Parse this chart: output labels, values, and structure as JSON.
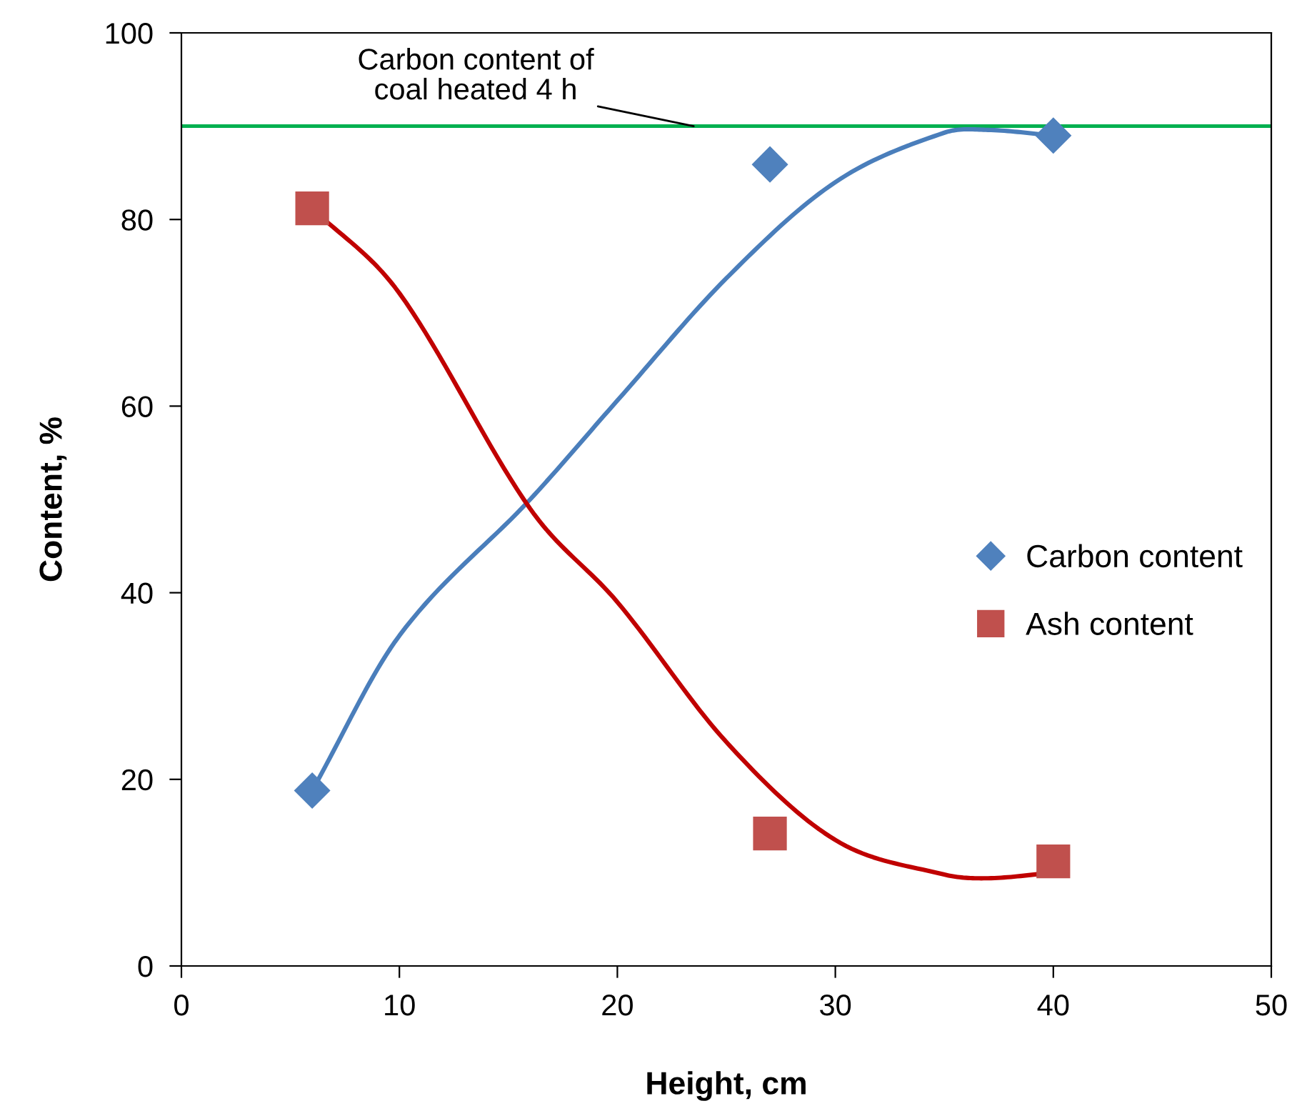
{
  "chart_data": {
    "type": "scatter",
    "xlabel": "Height, cm",
    "ylabel": "Content, %",
    "xlim": [
      0,
      50
    ],
    "ylim": [
      0,
      100
    ],
    "xticks": [
      0,
      10,
      20,
      30,
      40,
      50
    ],
    "yticks": [
      0,
      20,
      40,
      60,
      80,
      100
    ],
    "grid": false,
    "legend": "right",
    "series": [
      {
        "name": "Carbon content",
        "marker": "diamond",
        "color": "#4f81bd",
        "x": [
          6,
          27,
          40
        ],
        "values": [
          18.8,
          85.9,
          89.0
        ]
      },
      {
        "name": "Ash content",
        "marker": "square",
        "color": "#c0504d",
        "x": [
          6,
          27,
          40
        ],
        "values": [
          81.2,
          14.2,
          11.2
        ]
      },
      {
        "type": "line",
        "color": "#4a7ebb",
        "x": [
          6,
          10,
          16,
          20,
          25,
          30,
          35,
          37,
          40
        ],
        "values": [
          18.8,
          35.4,
          50.0,
          60.6,
          73.7,
          84.0,
          89.3,
          89.6,
          89.0
        ]
      },
      {
        "type": "line",
        "color": "#c00000",
        "x": [
          6,
          10,
          16,
          20,
          25,
          30,
          35,
          37,
          40
        ],
        "values": [
          81.2,
          72.1,
          49.0,
          39.0,
          24.0,
          13.5,
          9.8,
          9.4,
          10.0
        ]
      }
    ],
    "ref_lines": [
      {
        "axis": "y",
        "value": 90,
        "color": "#00b050"
      }
    ],
    "annotations": [
      {
        "text": "Carbon content of\ncoal heated 4 h",
        "x": 23.5,
        "y": 90
      }
    ]
  }
}
